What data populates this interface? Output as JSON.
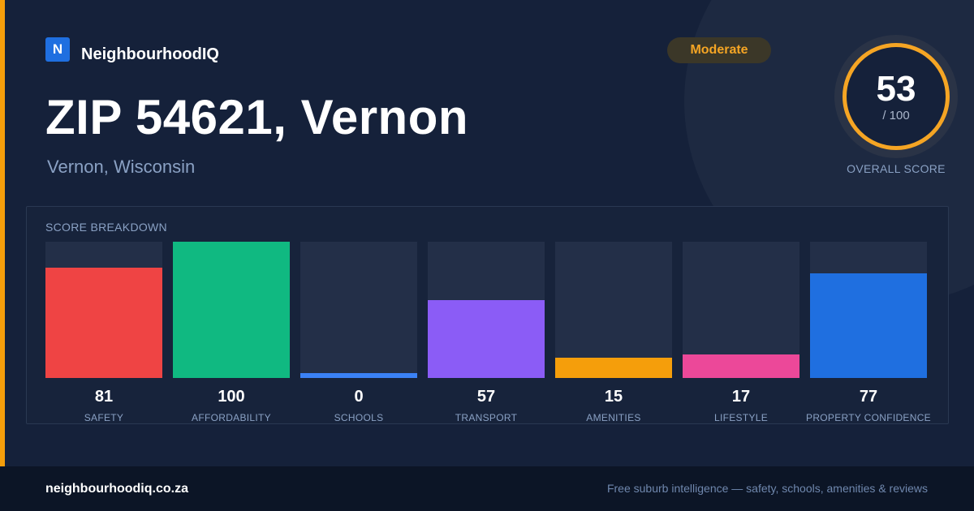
{
  "brand": {
    "logo_letter": "N",
    "name": "NeighbourhoodIQ",
    "logo_color": "#1f6fe0"
  },
  "header": {
    "title": "ZIP 54621, Vernon",
    "subtitle": "Vernon, Wisconsin",
    "badge": "Moderate"
  },
  "score": {
    "value": "53",
    "max": "/ 100",
    "caption": "OVERALL SCORE",
    "ring_color": "#f5a524"
  },
  "breakdown": {
    "title": "SCORE BREAKDOWN",
    "items": [
      {
        "label": "SAFETY",
        "value": "81",
        "color": "#ef4444"
      },
      {
        "label": "AFFORDABILITY",
        "value": "100",
        "color": "#10b981"
      },
      {
        "label": "SCHOOLS",
        "value": "0",
        "color": "#3b82f6"
      },
      {
        "label": "TRANSPORT",
        "value": "57",
        "color": "#8b5cf6"
      },
      {
        "label": "AMENITIES",
        "value": "15",
        "color": "#f59e0b"
      },
      {
        "label": "LIFESTYLE",
        "value": "17",
        "color": "#ec4899"
      },
      {
        "label": "PROPERTY CONFIDENCE",
        "value": "77",
        "color": "#1f6fe0"
      }
    ]
  },
  "footer": {
    "site": "neighbourhoodiq.co.za",
    "tagline": "Free suburb intelligence — safety, schools, amenities & reviews"
  }
}
